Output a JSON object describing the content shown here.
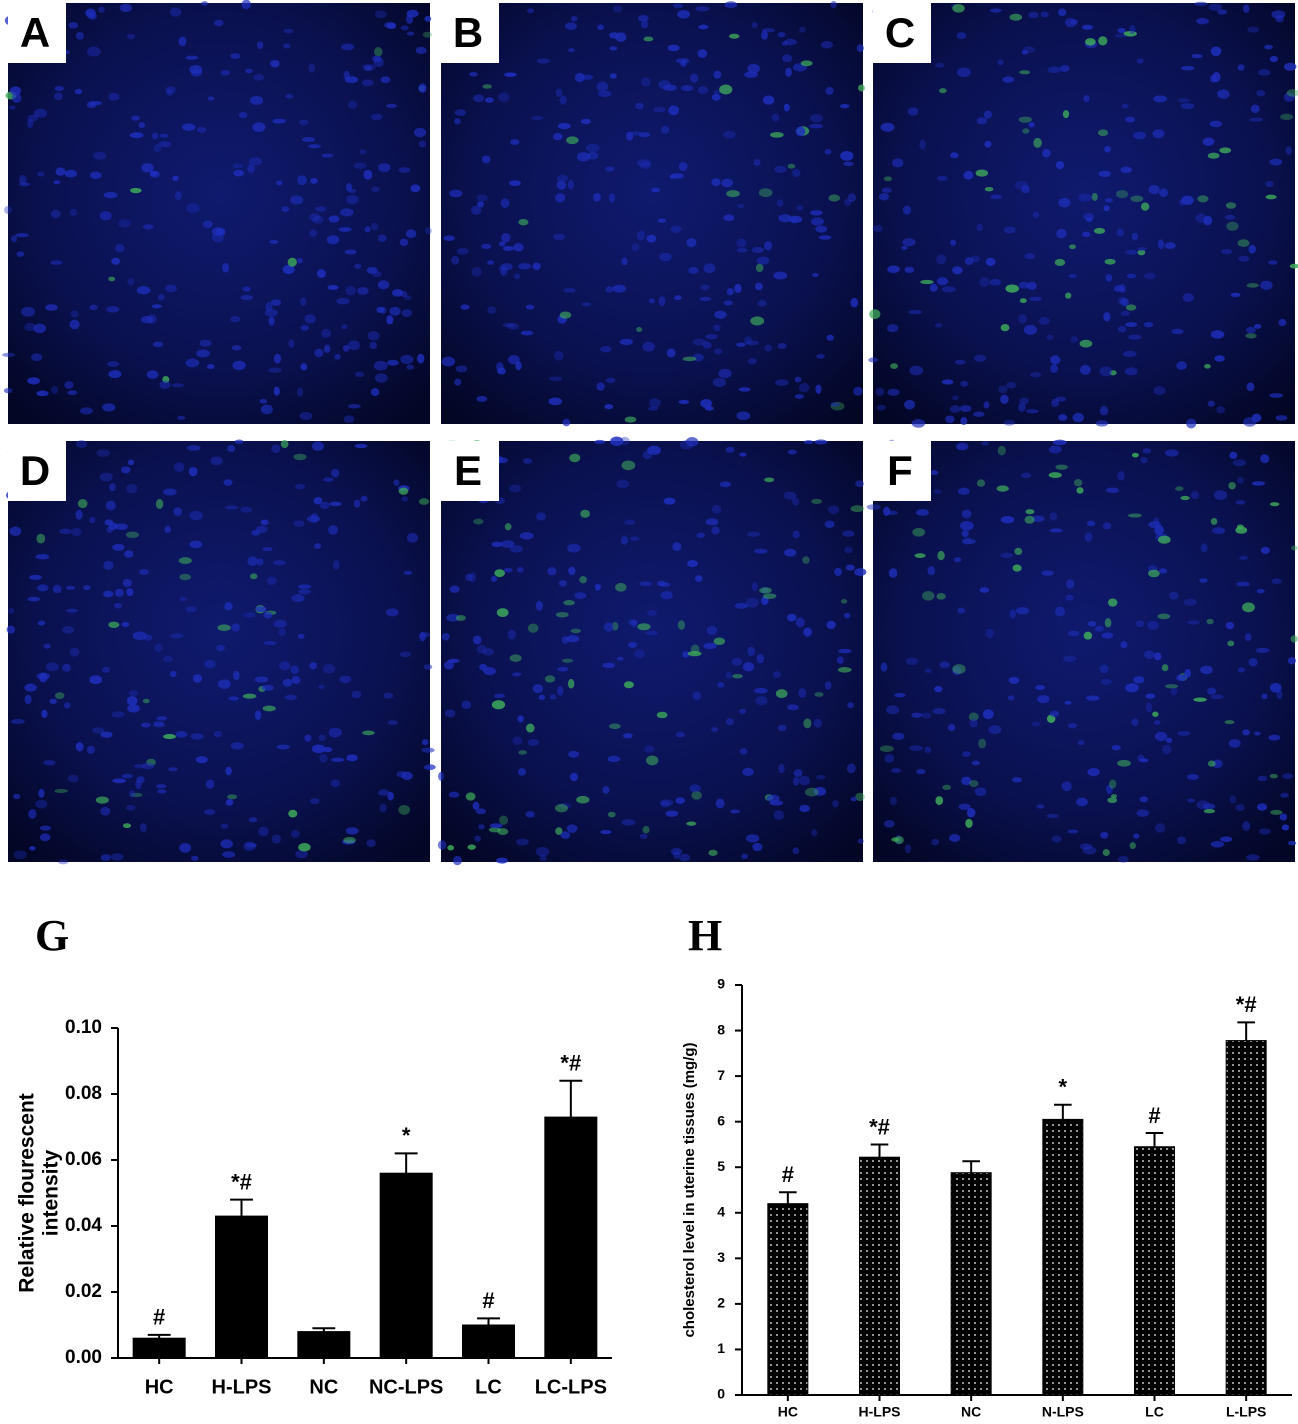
{
  "panels": [
    {
      "label": "A"
    },
    {
      "label": "B"
    },
    {
      "label": "C"
    },
    {
      "label": "D"
    },
    {
      "label": "E"
    },
    {
      "label": "F"
    }
  ],
  "chart_data": [
    {
      "type": "bar",
      "title": "G",
      "y_label": [
        "Relative flourescent",
        "intensity"
      ],
      "categories": [
        "HC",
        "H-LPS",
        "NC",
        "NC-LPS",
        "LC",
        "LC-LPS"
      ],
      "values": [
        0.006,
        0.043,
        0.008,
        0.056,
        0.01,
        0.073
      ],
      "errors": [
        0.001,
        0.005,
        0.001,
        0.006,
        0.002,
        0.011
      ],
      "annotations": [
        "#",
        "*#",
        null,
        "*",
        "#",
        "*#"
      ],
      "color": "#000000",
      "pattern": "solid",
      "ylim": [
        0,
        0.1
      ],
      "yticks": [
        {
          "value": 0,
          "label": "0.00"
        },
        {
          "value": 0.02,
          "label": "0.02"
        },
        {
          "value": 0.04,
          "label": "0.04"
        },
        {
          "value": 0.06,
          "label": "0.06"
        },
        {
          "value": 0.08,
          "label": "0.08"
        },
        {
          "value": 0.1,
          "label": "0.10"
        }
      ]
    },
    {
      "type": "bar",
      "title": "H",
      "y_label": [
        "cholesterol level in uterine tissues (mg/g)"
      ],
      "categories": [
        "HC",
        "H-LPS",
        "NC",
        "N-LPS",
        "LC",
        "L-LPS"
      ],
      "values": [
        4.2,
        5.22,
        4.88,
        6.05,
        5.45,
        7.78
      ],
      "errors": [
        0.25,
        0.28,
        0.25,
        0.32,
        0.3,
        0.4
      ],
      "annotations": [
        "#",
        "*#",
        null,
        "*",
        "#",
        "*#"
      ],
      "color": "#000000",
      "pattern": "dotted",
      "ylim": [
        0,
        9
      ],
      "yticks": [
        0,
        1,
        2,
        3,
        4,
        5,
        6,
        7,
        8,
        9
      ]
    }
  ]
}
